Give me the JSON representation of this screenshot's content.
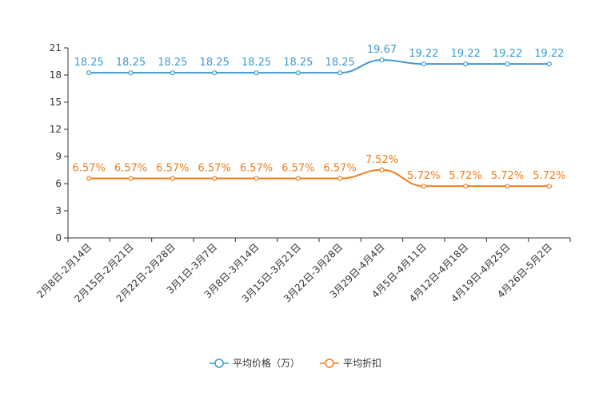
{
  "chart_data": {
    "type": "line",
    "title": "",
    "xlabel": "",
    "ylabel": "",
    "ylim": [
      0,
      21
    ],
    "yticks": [
      0,
      3,
      6,
      9,
      12,
      15,
      18,
      21
    ],
    "grid": false,
    "legend_position": "bottom-center",
    "categories": [
      "2月8日-2月14日",
      "2月15日-2月21日",
      "2月22日-2月28日",
      "3月1日-3月7日",
      "3月8日-3月14日",
      "3月15日-3月21日",
      "3月22日-3月28日",
      "3月29日-4月4日",
      "4月5日-4月11日",
      "4月12日-4月18日",
      "4月19日-4月25日",
      "4月26日-5月2日"
    ],
    "series": [
      {
        "name": "平均价格（万）",
        "color": "#3d9ad1",
        "values": [
          18.25,
          18.25,
          18.25,
          18.25,
          18.25,
          18.25,
          18.25,
          19.67,
          19.22,
          19.22,
          19.22,
          19.22
        ],
        "labels": [
          "18.25",
          "18.25",
          "18.25",
          "18.25",
          "18.25",
          "18.25",
          "18.25",
          "19.67",
          "19.22",
          "19.22",
          "19.22",
          "19.22"
        ]
      },
      {
        "name": "平均折扣",
        "color": "#f07d1a",
        "values": [
          6.57,
          6.57,
          6.57,
          6.57,
          6.57,
          6.57,
          6.57,
          7.52,
          5.72,
          5.72,
          5.72,
          5.72
        ],
        "labels": [
          "6.57%",
          "6.57%",
          "6.57%",
          "6.57%",
          "6.57%",
          "6.57%",
          "6.57%",
          "7.52%",
          "5.72%",
          "5.72%",
          "5.72%",
          "5.72%"
        ]
      }
    ]
  }
}
